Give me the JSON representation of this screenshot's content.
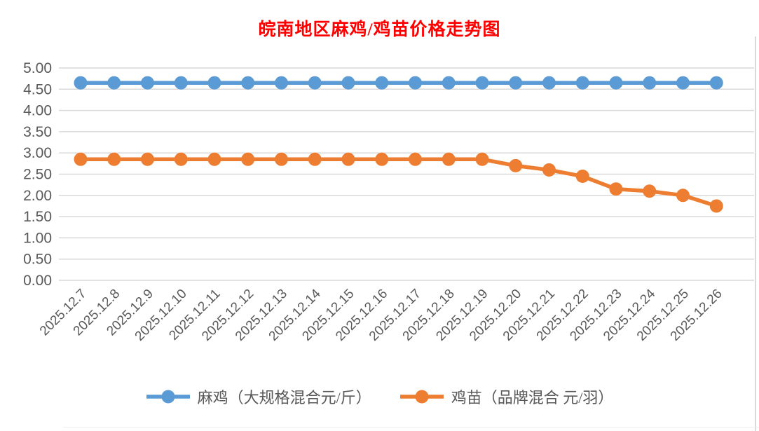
{
  "chart_data": {
    "type": "line",
    "title": "皖南地区麻鸡/鸡苗价格走势图",
    "title_color": "#FF0000",
    "categories": [
      "2025.12.7",
      "2025.12.8",
      "2025.12.9",
      "2025.12.10",
      "2025.12.11",
      "2025.12.12",
      "2025.12.13",
      "2025.12.14",
      "2025.12.15",
      "2025.12.16",
      "2025.12.17",
      "2025.12.18",
      "2025.12.19",
      "2025.12.20",
      "2025.12.21",
      "2025.12.22",
      "2025.12.23",
      "2025.12.24",
      "2025.12.25",
      "2025.12.26"
    ],
    "series": [
      {
        "name": "麻鸡（大规格混合元/斤）",
        "color": "#5B9BD5",
        "values": [
          4.65,
          4.65,
          4.65,
          4.65,
          4.65,
          4.65,
          4.65,
          4.65,
          4.65,
          4.65,
          4.65,
          4.65,
          4.65,
          4.65,
          4.65,
          4.65,
          4.65,
          4.65,
          4.65,
          4.65
        ]
      },
      {
        "name": "鸡苗（品牌混合 元/羽）",
        "color": "#ED7D31",
        "values": [
          2.85,
          2.85,
          2.85,
          2.85,
          2.85,
          2.85,
          2.85,
          2.85,
          2.85,
          2.85,
          2.85,
          2.85,
          2.85,
          2.7,
          2.6,
          2.45,
          2.15,
          2.1,
          2.0,
          1.75
        ]
      }
    ],
    "xlabel": "",
    "ylabel": "",
    "ylim": [
      0,
      5
    ],
    "ytick_step": 0.5,
    "ytick_decimals": 2,
    "grid": true,
    "gridline_color": "#D9D9D9",
    "axis_text_color": "#595959",
    "legend_position": "bottom",
    "marker": "circle"
  }
}
